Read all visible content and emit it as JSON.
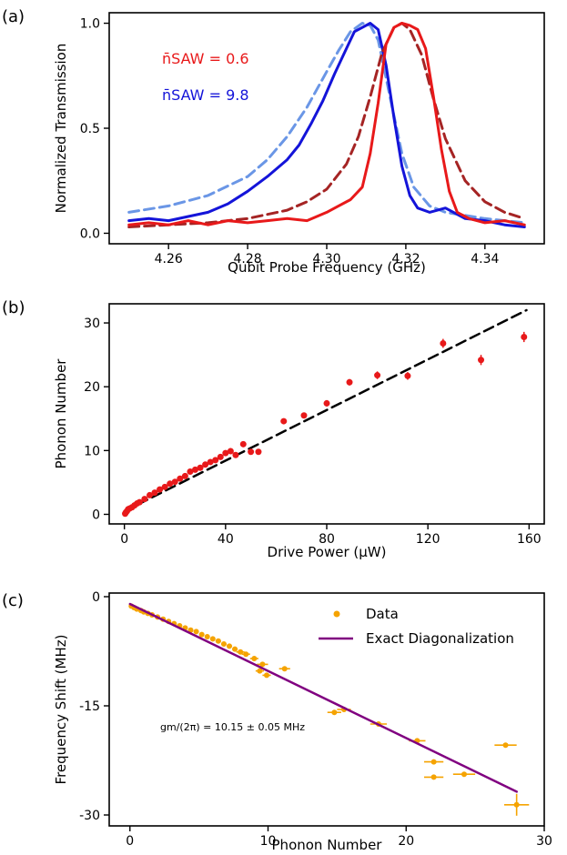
{
  "chart_data": [
    {
      "panel_label": "(a)",
      "type": "line",
      "xlabel": "Qubit Probe Frequency (GHz)",
      "ylabel": "Normalized Transmission",
      "xlim": [
        4.245,
        4.355
      ],
      "ylim": [
        -0.05,
        1.05
      ],
      "xticks": [
        4.26,
        4.28,
        4.3,
        4.32,
        4.34
      ],
      "xtick_labels": [
        "4.26",
        "4.28",
        "4.30",
        "4.32",
        "4.34"
      ],
      "yticks": [
        0.0,
        0.5,
        1.0
      ],
      "ytick_labels": [
        "0.0",
        "0.5",
        "1.0"
      ],
      "annotations": [
        {
          "text": "n̄SAW = 0.6",
          "color": "#e8191a"
        },
        {
          "text": "n̄SAW = 9.8",
          "color": "#1414d9"
        }
      ],
      "series": [
        {
          "style": "solid",
          "color": "#e8191a",
          "x": [
            4.25,
            4.255,
            4.26,
            4.265,
            4.27,
            4.275,
            4.28,
            4.285,
            4.29,
            4.295,
            4.3,
            4.303,
            4.306,
            4.309,
            4.311,
            4.313,
            4.315,
            4.317,
            4.319,
            4.321,
            4.323,
            4.325,
            4.327,
            4.329,
            4.331,
            4.333,
            4.336,
            4.34,
            4.345,
            4.35
          ],
          "y": [
            0.04,
            0.05,
            0.04,
            0.06,
            0.04,
            0.06,
            0.05,
            0.06,
            0.07,
            0.06,
            0.1,
            0.13,
            0.16,
            0.22,
            0.38,
            0.62,
            0.9,
            0.98,
            1.0,
            0.99,
            0.97,
            0.88,
            0.65,
            0.4,
            0.2,
            0.1,
            0.07,
            0.05,
            0.06,
            0.04
          ]
        },
        {
          "style": "solid",
          "color": "#1414d9",
          "x": [
            4.25,
            4.255,
            4.26,
            4.265,
            4.27,
            4.275,
            4.28,
            4.285,
            4.29,
            4.293,
            4.296,
            4.299,
            4.302,
            4.305,
            4.307,
            4.309,
            4.311,
            4.313,
            4.315,
            4.317,
            4.319,
            4.321,
            4.323,
            4.326,
            4.33,
            4.335,
            4.34,
            4.345,
            4.35
          ],
          "y": [
            0.06,
            0.07,
            0.06,
            0.08,
            0.1,
            0.14,
            0.2,
            0.27,
            0.35,
            0.42,
            0.52,
            0.63,
            0.76,
            0.88,
            0.96,
            0.98,
            1.0,
            0.97,
            0.8,
            0.55,
            0.32,
            0.18,
            0.12,
            0.1,
            0.12,
            0.07,
            0.06,
            0.04,
            0.03
          ]
        },
        {
          "style": "dashed",
          "color": "#a52424",
          "x": [
            4.25,
            4.26,
            4.27,
            4.28,
            4.29,
            4.295,
            4.3,
            4.305,
            4.308,
            4.311,
            4.314,
            4.317,
            4.319,
            4.321,
            4.324,
            4.327,
            4.33,
            4.335,
            4.34,
            4.345,
            4.35
          ],
          "y": [
            0.03,
            0.04,
            0.05,
            0.07,
            0.11,
            0.15,
            0.21,
            0.33,
            0.46,
            0.65,
            0.86,
            0.98,
            1.0,
            0.97,
            0.85,
            0.64,
            0.45,
            0.25,
            0.15,
            0.1,
            0.07
          ]
        },
        {
          "style": "dashed",
          "color": "#6a96e6",
          "x": [
            4.25,
            4.26,
            4.27,
            4.28,
            4.285,
            4.29,
            4.295,
            4.3,
            4.303,
            4.306,
            4.309,
            4.311,
            4.313,
            4.316,
            4.319,
            4.322,
            4.326,
            4.33,
            4.34,
            4.35
          ],
          "y": [
            0.1,
            0.13,
            0.18,
            0.27,
            0.35,
            0.46,
            0.6,
            0.77,
            0.87,
            0.96,
            1.0,
            0.99,
            0.92,
            0.65,
            0.38,
            0.22,
            0.13,
            0.1,
            0.07,
            0.05
          ]
        }
      ]
    },
    {
      "panel_label": "(b)",
      "type": "scatter",
      "xlabel": "Drive Power (μW)",
      "ylabel": "Phonon Number",
      "xlim": [
        -6,
        166
      ],
      "ylim": [
        -1.5,
        33
      ],
      "xticks": [
        0,
        40,
        80,
        120,
        160
      ],
      "xtick_labels": [
        "0",
        "40",
        "80",
        "120",
        "160"
      ],
      "yticks": [
        0,
        10,
        20,
        30
      ],
      "ytick_labels": [
        "0",
        "10",
        "20",
        "30"
      ],
      "points": {
        "color": "#e8191a",
        "x": [
          0.3,
          0.6,
          1,
          1.5,
          2,
          3,
          4,
          5,
          6,
          8,
          10,
          12,
          14,
          16,
          18,
          20,
          22,
          24,
          26,
          28,
          30,
          32,
          34,
          36,
          38,
          40,
          42,
          44,
          47,
          50,
          53,
          63,
          71,
          80,
          89,
          100,
          112,
          126,
          141,
          158
        ],
        "y": [
          0.1,
          0.3,
          0.5,
          0.8,
          0.9,
          1.1,
          1.4,
          1.7,
          1.9,
          2.4,
          3.0,
          3.4,
          3.9,
          4.3,
          4.8,
          5.1,
          5.6,
          6.0,
          6.7,
          7.0,
          7.3,
          7.8,
          8.2,
          8.5,
          9.0,
          9.6,
          9.9,
          9.3,
          11.0,
          9.8,
          9.8,
          14.6,
          15.5,
          17.4,
          20.7,
          21.8,
          21.7,
          26.8,
          24.2,
          27.8
        ],
        "yerr": [
          0.3,
          0.3,
          0.3,
          0.3,
          0.3,
          0.3,
          0.3,
          0.3,
          0.3,
          0.3,
          0.3,
          0.3,
          0.3,
          0.3,
          0.3,
          0.3,
          0.3,
          0.3,
          0.3,
          0.3,
          0.3,
          0.3,
          0.3,
          0.3,
          0.3,
          0.3,
          0.3,
          0.3,
          0.3,
          0.3,
          0.3,
          0.4,
          0.4,
          0.5,
          0.5,
          0.6,
          0.6,
          0.7,
          0.8,
          0.8
        ]
      },
      "fit": {
        "style": "dashed",
        "color": "#000000",
        "x": [
          0,
          159
        ],
        "y": [
          0.5,
          32
        ]
      }
    },
    {
      "panel_label": "(c)",
      "type": "scatter",
      "xlabel": "Phonon Number",
      "ylabel": "Frequency Shift (MHz)",
      "xlim": [
        -1.5,
        30
      ],
      "ylim": [
        -31.5,
        0.5
      ],
      "xticks": [
        0,
        10,
        20,
        30
      ],
      "xtick_labels": [
        "0",
        "10",
        "20",
        "30"
      ],
      "yticks": [
        0,
        -15,
        -30
      ],
      "ytick_labels": [
        "0",
        "-15",
        "-30"
      ],
      "legend": {
        "position": "top-right",
        "entries": [
          "Data",
          "Exact Diagonalization"
        ]
      },
      "annotation": "gm/(2π) = 10.15 ± 0.05 MHz",
      "points": {
        "color": "#f5a300",
        "x": [
          0.1,
          0.3,
          0.5,
          0.8,
          1.0,
          1.3,
          1.6,
          2.0,
          2.4,
          2.8,
          3.2,
          3.6,
          4.0,
          4.4,
          4.8,
          5.2,
          5.6,
          6.0,
          6.4,
          6.8,
          7.2,
          7.6,
          8.0,
          8.4,
          9.0,
          9.6,
          9.4,
          9.9,
          11.2,
          14.8,
          15.5,
          18.0,
          20.8,
          22.0,
          22.0,
          24.2,
          27.2,
          28.0
        ],
        "y": [
          -1.3,
          -1.5,
          -1.7,
          -1.9,
          -2.1,
          -2.3,
          -2.5,
          -2.8,
          -3.1,
          -3.4,
          -3.7,
          -4.0,
          -4.3,
          -4.6,
          -4.8,
          -5.2,
          -5.5,
          -5.8,
          -6.1,
          -6.5,
          -6.8,
          -7.2,
          -7.6,
          -7.9,
          -8.5,
          -9.3,
          -10.2,
          -10.8,
          -9.9,
          -15.9,
          -15.5,
          -17.5,
          -19.8,
          -22.7,
          -24.8,
          -24.4,
          -20.4,
          -28.6
        ],
        "xerr": [
          0.1,
          0.1,
          0.1,
          0.1,
          0.1,
          0.1,
          0.1,
          0.1,
          0.1,
          0.1,
          0.1,
          0.1,
          0.1,
          0.1,
          0.1,
          0.1,
          0.1,
          0.1,
          0.2,
          0.2,
          0.2,
          0.2,
          0.3,
          0.3,
          0.3,
          0.4,
          0.3,
          0.3,
          0.4,
          0.5,
          0.5,
          0.6,
          0.6,
          0.7,
          0.7,
          0.8,
          0.8,
          0.9
        ],
        "yerr": [
          0.1,
          0.1,
          0.1,
          0.1,
          0.1,
          0.1,
          0.1,
          0.1,
          0.1,
          0.1,
          0.1,
          0.1,
          0.1,
          0.1,
          0.1,
          0.1,
          0.1,
          0.1,
          0.1,
          0.1,
          0.1,
          0.1,
          0.1,
          0.1,
          0.2,
          0.2,
          0.2,
          0.2,
          0.2,
          0.2,
          0.2,
          0.2,
          0.2,
          0.3,
          0.3,
          0.3,
          0.3,
          1.5
        ]
      },
      "fit": {
        "name": "Exact Diagonalization",
        "style": "solid",
        "color": "#800080",
        "x": [
          0,
          28
        ],
        "y": [
          -1.0,
          -26.8
        ]
      }
    }
  ]
}
